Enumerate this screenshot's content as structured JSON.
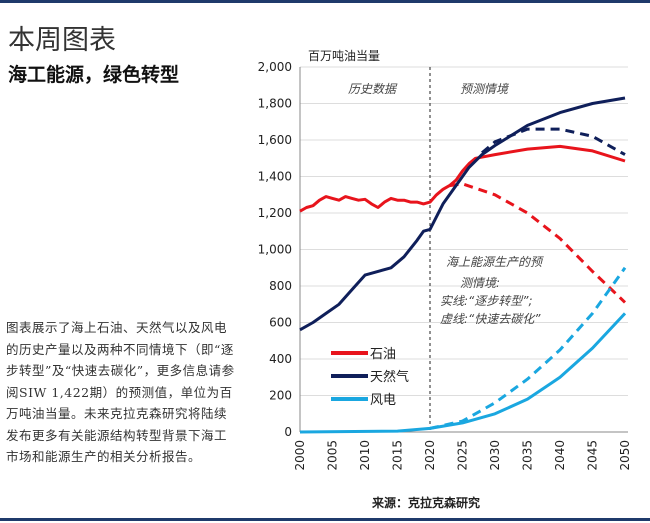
{
  "header": {
    "title": "本周图表",
    "subtitle": "海工能源，绿色转型"
  },
  "description": "图表展示了海上石油、天然气以及风电的历史产量以及两种不同情境下（即“逐步转型”及“快速去碳化”，更多信息请参阅SIW 1,422期）的预测值，单位为百万吨油当量。未来克拉克森研究将陆续发布更多有关能源结构转型背景下海工市场和能源生产的相关分析报告。",
  "chart_data": {
    "type": "line",
    "unit_label": "百万吨油当量",
    "xlim": [
      2000,
      2050
    ],
    "ylim": [
      0,
      2000
    ],
    "xticks": [
      "2000",
      "2005",
      "2010",
      "2015",
      "2020",
      "2025",
      "2030",
      "2035",
      "2040",
      "2045",
      "2050"
    ],
    "yticks": [
      "0",
      "200",
      "400",
      "600",
      "800",
      "1,000",
      "1,200",
      "1,400",
      "1,600",
      "1,800",
      "2,000"
    ],
    "grid": "horizontal",
    "divider_year": 2020,
    "region_labels": {
      "history": "历史数据",
      "forecast": "预测情境"
    },
    "annotation": [
      "海上能源生产的预",
      "测情境:",
      "实线:“逐步转型”;",
      "虚线:“快速去碳化”"
    ],
    "legend_position": "bottom-left",
    "series": [
      {
        "name": "石油",
        "color": "#e8141c",
        "style": "solid",
        "x": [
          2000,
          2001,
          2002,
          2003,
          2004,
          2005,
          2006,
          2007,
          2008,
          2009,
          2010,
          2011,
          2012,
          2013,
          2014,
          2015,
          2016,
          2017,
          2018,
          2019,
          2020,
          2021,
          2022,
          2023,
          2024,
          2025,
          2026,
          2027,
          2030,
          2035,
          2040,
          2045,
          2050
        ],
        "y": [
          1210,
          1230,
          1240,
          1270,
          1290,
          1280,
          1270,
          1290,
          1280,
          1270,
          1275,
          1250,
          1230,
          1260,
          1280,
          1270,
          1270,
          1260,
          1260,
          1250,
          1260,
          1300,
          1330,
          1350,
          1380,
          1430,
          1470,
          1500,
          1520,
          1550,
          1565,
          1540,
          1485
        ]
      },
      {
        "color": "#e8141c",
        "style": "dashed",
        "x": [
          2023,
          2025,
          2030,
          2035,
          2040,
          2045,
          2050
        ],
        "y": [
          1350,
          1360,
          1300,
          1200,
          1060,
          880,
          710
        ]
      },
      {
        "name": "天然气",
        "color": "#0f1f5a",
        "style": "solid",
        "x": [
          2000,
          2002,
          2004,
          2006,
          2008,
          2010,
          2012,
          2014,
          2016,
          2018,
          2019,
          2020,
          2021,
          2022,
          2024,
          2026,
          2028,
          2030,
          2035,
          2040,
          2045,
          2050
        ],
        "y": [
          560,
          600,
          650,
          700,
          780,
          860,
          880,
          900,
          960,
          1050,
          1100,
          1110,
          1180,
          1250,
          1350,
          1450,
          1520,
          1570,
          1680,
          1750,
          1800,
          1830
        ]
      },
      {
        "color": "#0f1f5a",
        "style": "dashed",
        "x": [
          2028,
          2030,
          2035,
          2040,
          2045,
          2050
        ],
        "y": [
          1530,
          1590,
          1660,
          1660,
          1620,
          1520
        ]
      },
      {
        "name": "风电",
        "color": "#1aa7e0",
        "style": "solid",
        "x": [
          2000,
          2015,
          2020,
          2025,
          2030,
          2035,
          2040,
          2045,
          2050
        ],
        "y": [
          0,
          5,
          20,
          50,
          100,
          180,
          300,
          460,
          650
        ]
      },
      {
        "color": "#1aa7e0",
        "style": "dashed",
        "x": [
          2020,
          2025,
          2030,
          2035,
          2040,
          2045,
          2050
        ],
        "y": [
          20,
          60,
          160,
          290,
          450,
          650,
          900
        ]
      }
    ]
  },
  "source": "来源：克拉克森研究"
}
